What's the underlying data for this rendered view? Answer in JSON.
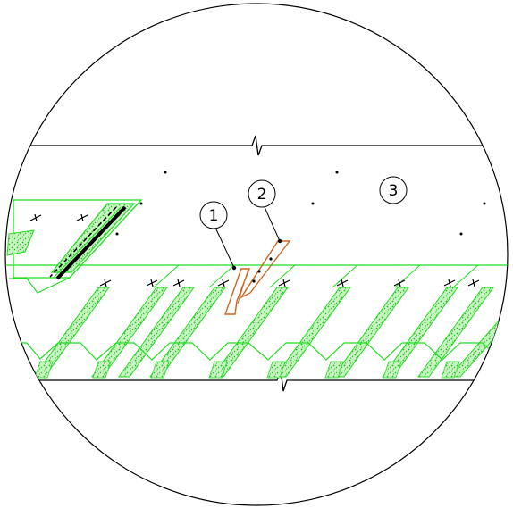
{
  "detail": {
    "callouts": [
      {
        "id": "callout-1",
        "label": "1"
      },
      {
        "id": "callout-2",
        "label": "2"
      },
      {
        "id": "callout-3",
        "label": "3"
      }
    ]
  },
  "colors": {
    "outline": "#000000",
    "insulation": "#22dd22",
    "insulation_fill": "#b8f0b0",
    "anchor": "#cc6622",
    "highlight": "#000000"
  }
}
